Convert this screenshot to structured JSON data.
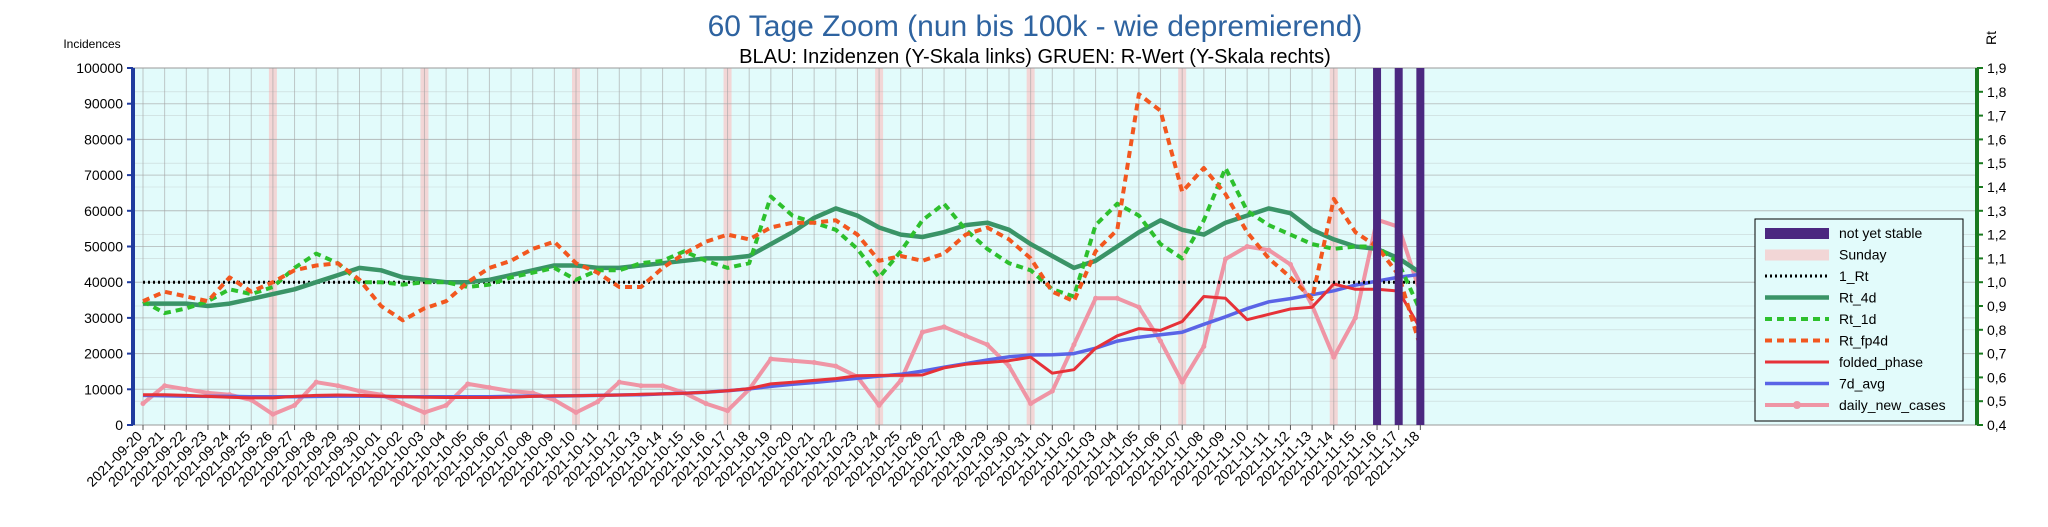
{
  "chart_data": {
    "type": "line",
    "title": "60 Tage Zoom  (nun bis 100k - wie depremierend)",
    "subtitle": "BLAU: Inzidenzen (Y-Skala links)     GRUEN: R-Wert (Y-Skala rechts)",
    "ylabel_left": "Incidences",
    "ylabel_right": "Rt",
    "ylim_left": [
      0,
      100000
    ],
    "ylim_right": [
      0.4,
      1.9
    ],
    "yticks_left": [
      "0",
      "10000",
      "20000",
      "30000",
      "40000",
      "50000",
      "60000",
      "70000",
      "80000",
      "90000",
      "100000"
    ],
    "yticks_right": [
      "0,4",
      "0,5",
      "0,6",
      "0,7",
      "0,8",
      "0,9",
      "1,0",
      "1,1",
      "1,2",
      "1,3",
      "1,4",
      "1,5",
      "1,6",
      "1,7",
      "1,8",
      "1,9"
    ],
    "grid": true,
    "legend_position": "right",
    "colors": {
      "background": "#e2fbfb",
      "grid": "#a3a3a3",
      "title": "#2e63a0",
      "left_axis": "#1f3b9e",
      "right_axis": "#1a7a20",
      "not_yet_stable": "#4b2880",
      "sunday": "#f2d6d6",
      "rt_ref": "#000000",
      "rt_4d": "#3a9467",
      "rt_1d": "#2dc02d",
      "rt_fp4d": "#f2571f",
      "folded_phase": "#e63238",
      "avg_7d": "#5a64e6",
      "daily_new_cases": "#ef95a5"
    },
    "x": [
      "2021-09-20",
      "2021-09-21",
      "2021-09-22",
      "2021-09-23",
      "2021-09-24",
      "2021-09-25",
      "2021-09-26",
      "2021-09-27",
      "2021-09-28",
      "2021-09-29",
      "2021-09-30",
      "2021-10-01",
      "2021-10-02",
      "2021-10-03",
      "2021-10-04",
      "2021-10-05",
      "2021-10-06",
      "2021-10-07",
      "2021-10-08",
      "2021-10-09",
      "2021-10-10",
      "2021-10-11",
      "2021-10-12",
      "2021-10-13",
      "2021-10-14",
      "2021-10-15",
      "2021-10-16",
      "2021-10-17",
      "2021-10-18",
      "2021-10-19",
      "2021-10-20",
      "2021-10-21",
      "2021-10-22",
      "2021-10-23",
      "2021-10-24",
      "2021-10-25",
      "2021-10-26",
      "2021-10-27",
      "2021-10-28",
      "2021-10-29",
      "2021-10-30",
      "2021-10-31",
      "2021-11-01",
      "2021-11-02",
      "2021-11-03",
      "2021-11-04",
      "2021-11-05",
      "2021-11-06",
      "2021-11-07",
      "2021-11-08",
      "2021-11-09",
      "2021-11-10",
      "2021-11-11",
      "2021-11-12",
      "2021-11-13",
      "2021-11-14",
      "2021-11-15",
      "2021-11-16",
      "2021-11-17",
      "2021-11-18"
    ],
    "sundays": [
      "2021-09-26",
      "2021-10-03",
      "2021-10-10",
      "2021-10-17",
      "2021-10-24",
      "2021-10-31",
      "2021-11-07",
      "2021-11-14"
    ],
    "not_yet_stable": [
      "2021-11-16",
      "2021-11-17",
      "2021-11-18"
    ],
    "legend": [
      "not yet stable",
      "Sunday",
      "1_Rt",
      "Rt_4d",
      "Rt_1d",
      "Rt_fp4d",
      "folded_phase",
      "7d_avg",
      "daily_new_cases"
    ],
    "series": [
      {
        "name": "1_Rt",
        "axis": "right",
        "style": "dotted",
        "values": [
          1.0,
          1.0,
          1.0,
          1.0,
          1.0,
          1.0,
          1.0,
          1.0,
          1.0,
          1.0,
          1.0,
          1.0,
          1.0,
          1.0,
          1.0,
          1.0,
          1.0,
          1.0,
          1.0,
          1.0,
          1.0,
          1.0,
          1.0,
          1.0,
          1.0,
          1.0,
          1.0,
          1.0,
          1.0,
          1.0,
          1.0,
          1.0,
          1.0,
          1.0,
          1.0,
          1.0,
          1.0,
          1.0,
          1.0,
          1.0,
          1.0,
          1.0,
          1.0,
          1.0,
          1.0,
          1.0,
          1.0,
          1.0,
          1.0,
          1.0,
          1.0,
          1.0,
          1.0,
          1.0,
          1.0,
          1.0,
          1.0,
          1.0,
          1.0,
          1.0
        ]
      },
      {
        "name": "Rt_4d",
        "axis": "right",
        "style": "solid",
        "values": [
          0.91,
          0.91,
          0.91,
          0.9,
          0.91,
          0.93,
          0.95,
          0.97,
          1.0,
          1.03,
          1.06,
          1.05,
          1.02,
          1.01,
          1.0,
          1.0,
          1.01,
          1.03,
          1.05,
          1.07,
          1.07,
          1.06,
          1.06,
          1.07,
          1.08,
          1.09,
          1.1,
          1.1,
          1.11,
          1.16,
          1.21,
          1.27,
          1.31,
          1.28,
          1.23,
          1.2,
          1.19,
          1.21,
          1.24,
          1.25,
          1.22,
          1.16,
          1.11,
          1.06,
          1.09,
          1.15,
          1.21,
          1.26,
          1.22,
          1.2,
          1.25,
          1.28,
          1.31,
          1.29,
          1.22,
          1.18,
          1.15,
          1.14,
          1.1,
          1.04
        ]
      },
      {
        "name": "Rt_1d",
        "axis": "right",
        "style": "dashed",
        "values": [
          0.92,
          0.87,
          0.89,
          0.92,
          0.97,
          0.95,
          0.98,
          1.06,
          1.12,
          1.08,
          1.0,
          1.0,
          0.99,
          1.0,
          1.0,
          0.98,
          0.99,
          1.02,
          1.04,
          1.06,
          1.01,
          1.05,
          1.05,
          1.08,
          1.09,
          1.13,
          1.09,
          1.06,
          1.08,
          1.36,
          1.28,
          1.25,
          1.22,
          1.14,
          1.02,
          1.13,
          1.26,
          1.33,
          1.22,
          1.14,
          1.08,
          1.05,
          0.97,
          0.94,
          1.24,
          1.33,
          1.28,
          1.16,
          1.1,
          1.26,
          1.48,
          1.3,
          1.24,
          1.2,
          1.16,
          1.14,
          1.15,
          1.15,
          1.08,
          0.88
        ]
      },
      {
        "name": "Rt_fp4d",
        "axis": "right",
        "style": "dashed",
        "values": [
          0.92,
          0.96,
          0.94,
          0.92,
          1.02,
          0.96,
          1.0,
          1.05,
          1.07,
          1.08,
          1.01,
          0.9,
          0.84,
          0.89,
          0.92,
          1.0,
          1.06,
          1.09,
          1.14,
          1.17,
          1.08,
          1.04,
          0.98,
          0.98,
          1.06,
          1.12,
          1.17,
          1.2,
          1.18,
          1.23,
          1.25,
          1.25,
          1.26,
          1.2,
          1.09,
          1.11,
          1.09,
          1.12,
          1.2,
          1.23,
          1.18,
          1.1,
          0.96,
          0.92,
          1.13,
          1.22,
          1.79,
          1.72,
          1.38,
          1.48,
          1.37,
          1.21,
          1.1,
          1.02,
          0.93,
          1.35,
          1.21,
          1.15,
          1.03,
          0.73
        ]
      },
      {
        "name": "folded_phase",
        "axis": "left",
        "style": "solid",
        "values": [
          8500,
          8500,
          8300,
          8000,
          7800,
          7600,
          7600,
          8000,
          8300,
          8400,
          8300,
          8100,
          7900,
          7800,
          7700,
          7700,
          7700,
          7800,
          8000,
          8200,
          8200,
          8300,
          8400,
          8600,
          8700,
          8900,
          9200,
          9600,
          10200,
          11500,
          12000,
          12500,
          13000,
          13800,
          13900,
          13900,
          14000,
          16000,
          17000,
          17500,
          18000,
          19000,
          14500,
          15500,
          21500,
          25000,
          27000,
          26500,
          29000,
          36000,
          35500,
          29500,
          31000,
          32500,
          33000,
          39500,
          38000,
          38000,
          37500,
          27000
        ]
      },
      {
        "name": "7d_avg",
        "axis": "left",
        "style": "solid",
        "values": [
          8300,
          8200,
          8100,
          8000,
          8000,
          7900,
          7900,
          7900,
          8000,
          8100,
          8100,
          8000,
          7900,
          7900,
          7900,
          7900,
          7900,
          8000,
          8100,
          8100,
          8200,
          8300,
          8400,
          8500,
          8700,
          8900,
          9200,
          9600,
          10100,
          10800,
          11400,
          11900,
          12500,
          13100,
          13700,
          14200,
          15100,
          16200,
          17200,
          18200,
          19100,
          19600,
          19700,
          20000,
          21500,
          23500,
          24600,
          25300,
          26000,
          28200,
          30300,
          32600,
          34500,
          35400,
          36500,
          37600,
          39200,
          40300,
          41400,
          42200
        ]
      },
      {
        "name": "daily_new_cases",
        "axis": "left",
        "style": "marker",
        "values": [
          6000,
          11000,
          10000,
          9000,
          8500,
          7000,
          3000,
          5500,
          12000,
          11000,
          9500,
          8500,
          6000,
          3500,
          5500,
          11500,
          10500,
          9500,
          9000,
          7000,
          3500,
          6500,
          12000,
          11000,
          11000,
          9000,
          6000,
          4000,
          10000,
          18500,
          18000,
          17500,
          16500,
          13500,
          5500,
          12500,
          26000,
          27500,
          25000,
          22500,
          16500,
          6000,
          9500,
          22500,
          35500,
          35500,
          33000,
          23500,
          12000,
          22000,
          46500,
          50000,
          49000,
          45000,
          33500,
          19000,
          30000,
          57500,
          55500,
          37000
        ]
      }
    ]
  }
}
